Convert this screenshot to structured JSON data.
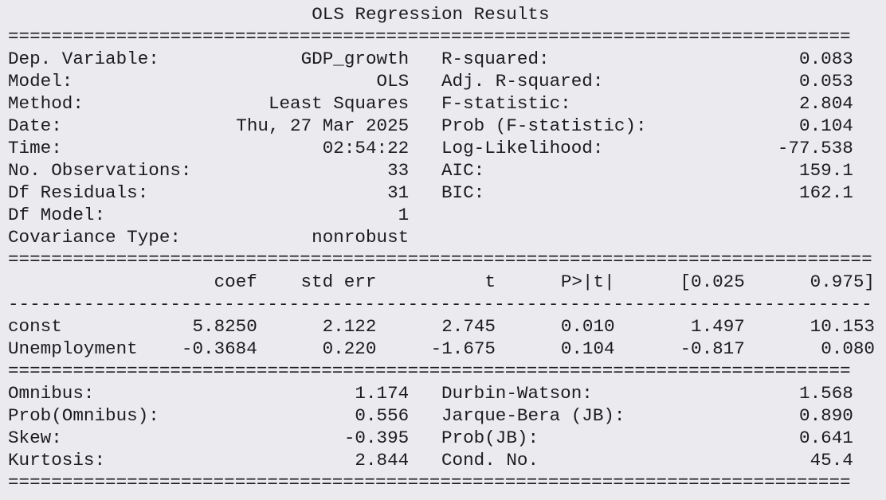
{
  "title": "OLS Regression Results",
  "rules": [
    "==============================================================================",
    "================================================================================",
    "--------------------------------------------------------------------------------",
    "==============================================================================",
    "=============================================================================="
  ],
  "model_info": {
    "left": [
      [
        "Dep. Variable:",
        "GDP_growth"
      ],
      [
        "Model:",
        "OLS"
      ],
      [
        "Method:",
        "Least Squares"
      ],
      [
        "Date:",
        "Thu, 27 Mar 2025"
      ],
      [
        "Time:",
        "02:54:22"
      ],
      [
        "No. Observations:",
        "33"
      ],
      [
        "Df Residuals:",
        "31"
      ],
      [
        "Df Model:",
        "1"
      ],
      [
        "Covariance Type:",
        "nonrobust"
      ]
    ],
    "right": [
      [
        "R-squared:",
        "0.083"
      ],
      [
        "Adj. R-squared:",
        "0.053"
      ],
      [
        "F-statistic:",
        "2.804"
      ],
      [
        "Prob (F-statistic):",
        "0.104"
      ],
      [
        "Log-Likelihood:",
        "-77.538"
      ],
      [
        "AIC:",
        "159.1"
      ],
      [
        "BIC:",
        "162.1"
      ]
    ]
  },
  "coefficients": {
    "header": [
      "coef",
      "std err",
      "t",
      "P>|t|",
      "[0.025",
      "0.975]"
    ],
    "rows": [
      [
        "const",
        "5.8250",
        "2.122",
        "2.745",
        "0.010",
        "1.497",
        "10.153"
      ],
      [
        "Unemployment",
        "-0.3684",
        "0.220",
        "-1.675",
        "0.104",
        "-0.817",
        "0.080"
      ]
    ]
  },
  "diagnostics": {
    "left": [
      [
        "Omnibus:",
        "1.174"
      ],
      [
        "Prob(Omnibus):",
        "0.556"
      ],
      [
        "Skew:",
        "-0.395"
      ],
      [
        "Kurtosis:",
        "2.844"
      ]
    ],
    "right": [
      [
        "Durbin-Watson:",
        "1.568"
      ],
      [
        "Jarque-Bera (JB):",
        "0.890"
      ],
      [
        "Prob(JB):",
        "0.641"
      ],
      [
        "Cond. No.",
        "45.4"
      ]
    ]
  }
}
